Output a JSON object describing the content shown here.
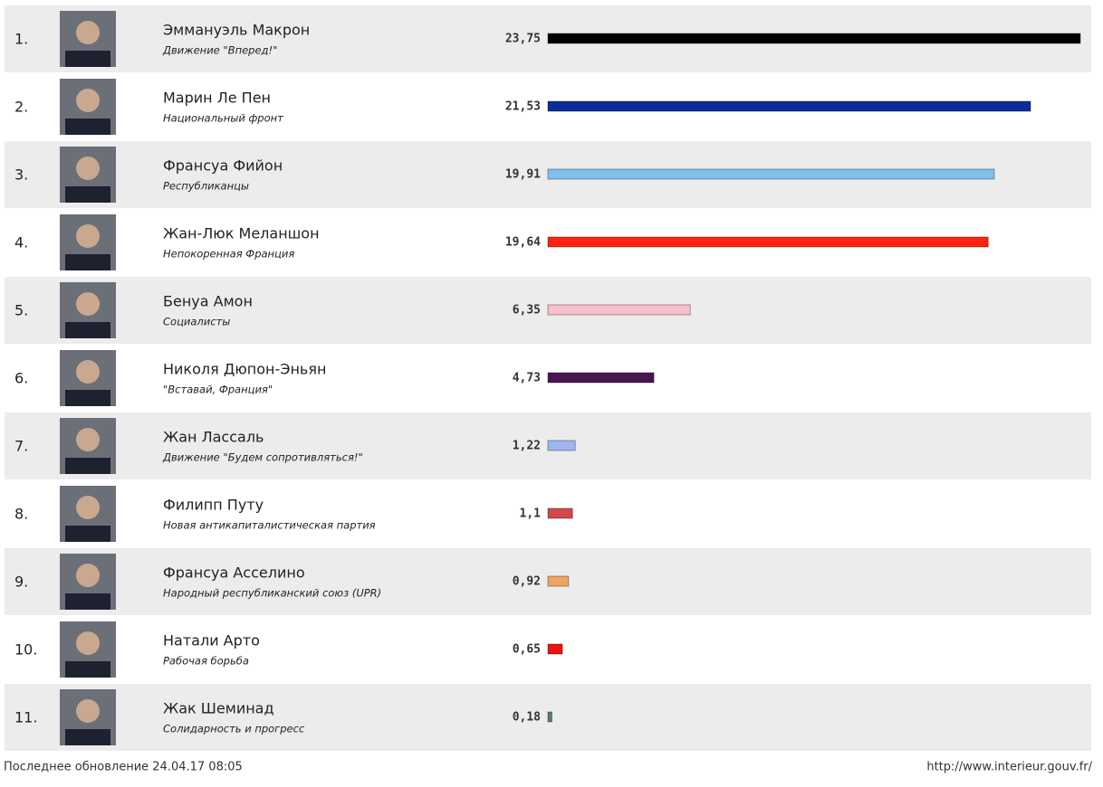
{
  "chart_data": {
    "type": "bar",
    "ranks": [
      "1.",
      "2.",
      "3.",
      "4.",
      "5.",
      "6.",
      "7.",
      "8.",
      "9.",
      "10.",
      "11."
    ],
    "categories": [
      "Эммануэль Макрон",
      "Марин Ле Пен",
      "Франсуа Фийон",
      "Жан-Люк Меланшон",
      "Бенуа Амон",
      "Николя Дюпон-Эньян",
      "Жан Лассаль",
      "Филипп Путу",
      "Франсуа Асселино",
      "Натали Арто",
      "Жак Шеминад"
    ],
    "parties": [
      "Движение \"Вперед!\"",
      "Национальный фронт",
      "Республиканцы",
      "Непокоренная Франция",
      "Социалисты",
      "\"Вставай, Франция\"",
      "Движение \"Будем сопротивляться!\"",
      "Новая антикапиталистическая партия",
      "Народный республиканский союз (UPR)",
      "Рабочая борьба",
      "Солидарность и прогресс"
    ],
    "values": [
      23.75,
      21.53,
      19.91,
      19.64,
      6.35,
      4.73,
      1.22,
      1.1,
      0.92,
      0.65,
      0.18
    ],
    "value_labels": [
      "23,75",
      "21,53",
      "19,91",
      "19,64",
      "6,35",
      "4,73",
      "1,22",
      "1,1",
      "0,92",
      "0,65",
      "0,18"
    ],
    "colors": [
      "#000000",
      "#0b2d9c",
      "#80c0ec",
      "#ff2210",
      "#f8bfcc",
      "#4a1552",
      "#9db6ee",
      "#d24848",
      "#f0a462",
      "#ee1111",
      "#5c7a70"
    ],
    "note": "Последнее обновление 24.04.17 08:05",
    "source": "http://www.interieur.gouv.fr/"
  }
}
